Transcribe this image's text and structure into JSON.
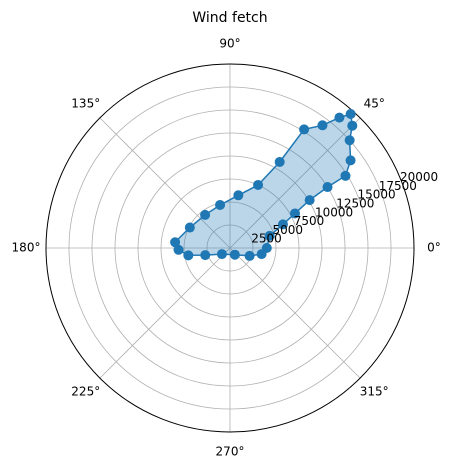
{
  "chart_data": {
    "type": "polar-area",
    "title": "Wind fetch",
    "x": [
      0,
      17,
      24,
      28,
      31,
      32,
      32,
      36,
      42,
      45,
      48,
      50,
      53,
      58,
      60,
      66,
      81,
      103,
      127,
      153,
      174,
      182,
      190,
      196,
      217,
      306,
      338,
      349
    ],
    "values": [
      4000,
      4500,
      6300,
      8000,
      10100,
      12500,
      14800,
      16200,
      17500,
      18800,
      19600,
      18500,
      16700,
      15200,
      10800,
      7500,
      5800,
      4800,
      4500,
      4900,
      6000,
      5600,
      4600,
      2800,
      1100,
      900,
      2300,
      3500
    ],
    "color": "#1f77b4",
    "xlim": [
      0,
      360
    ],
    "xticks": [
      {
        "value": 0,
        "label": "0°"
      },
      {
        "value": 45,
        "label": "45°"
      },
      {
        "value": 90,
        "label": "90°"
      },
      {
        "value": 135,
        "label": "135°"
      },
      {
        "value": 180,
        "label": "180°"
      },
      {
        "value": 225,
        "label": "225°"
      },
      {
        "value": 270,
        "label": "270°"
      },
      {
        "value": 315,
        "label": "315°"
      }
    ],
    "ylim": [
      0,
      20000
    ],
    "yticks": [
      2500,
      5000,
      7500,
      10000,
      12500,
      15000,
      17500,
      20000
    ],
    "grid": true
  }
}
